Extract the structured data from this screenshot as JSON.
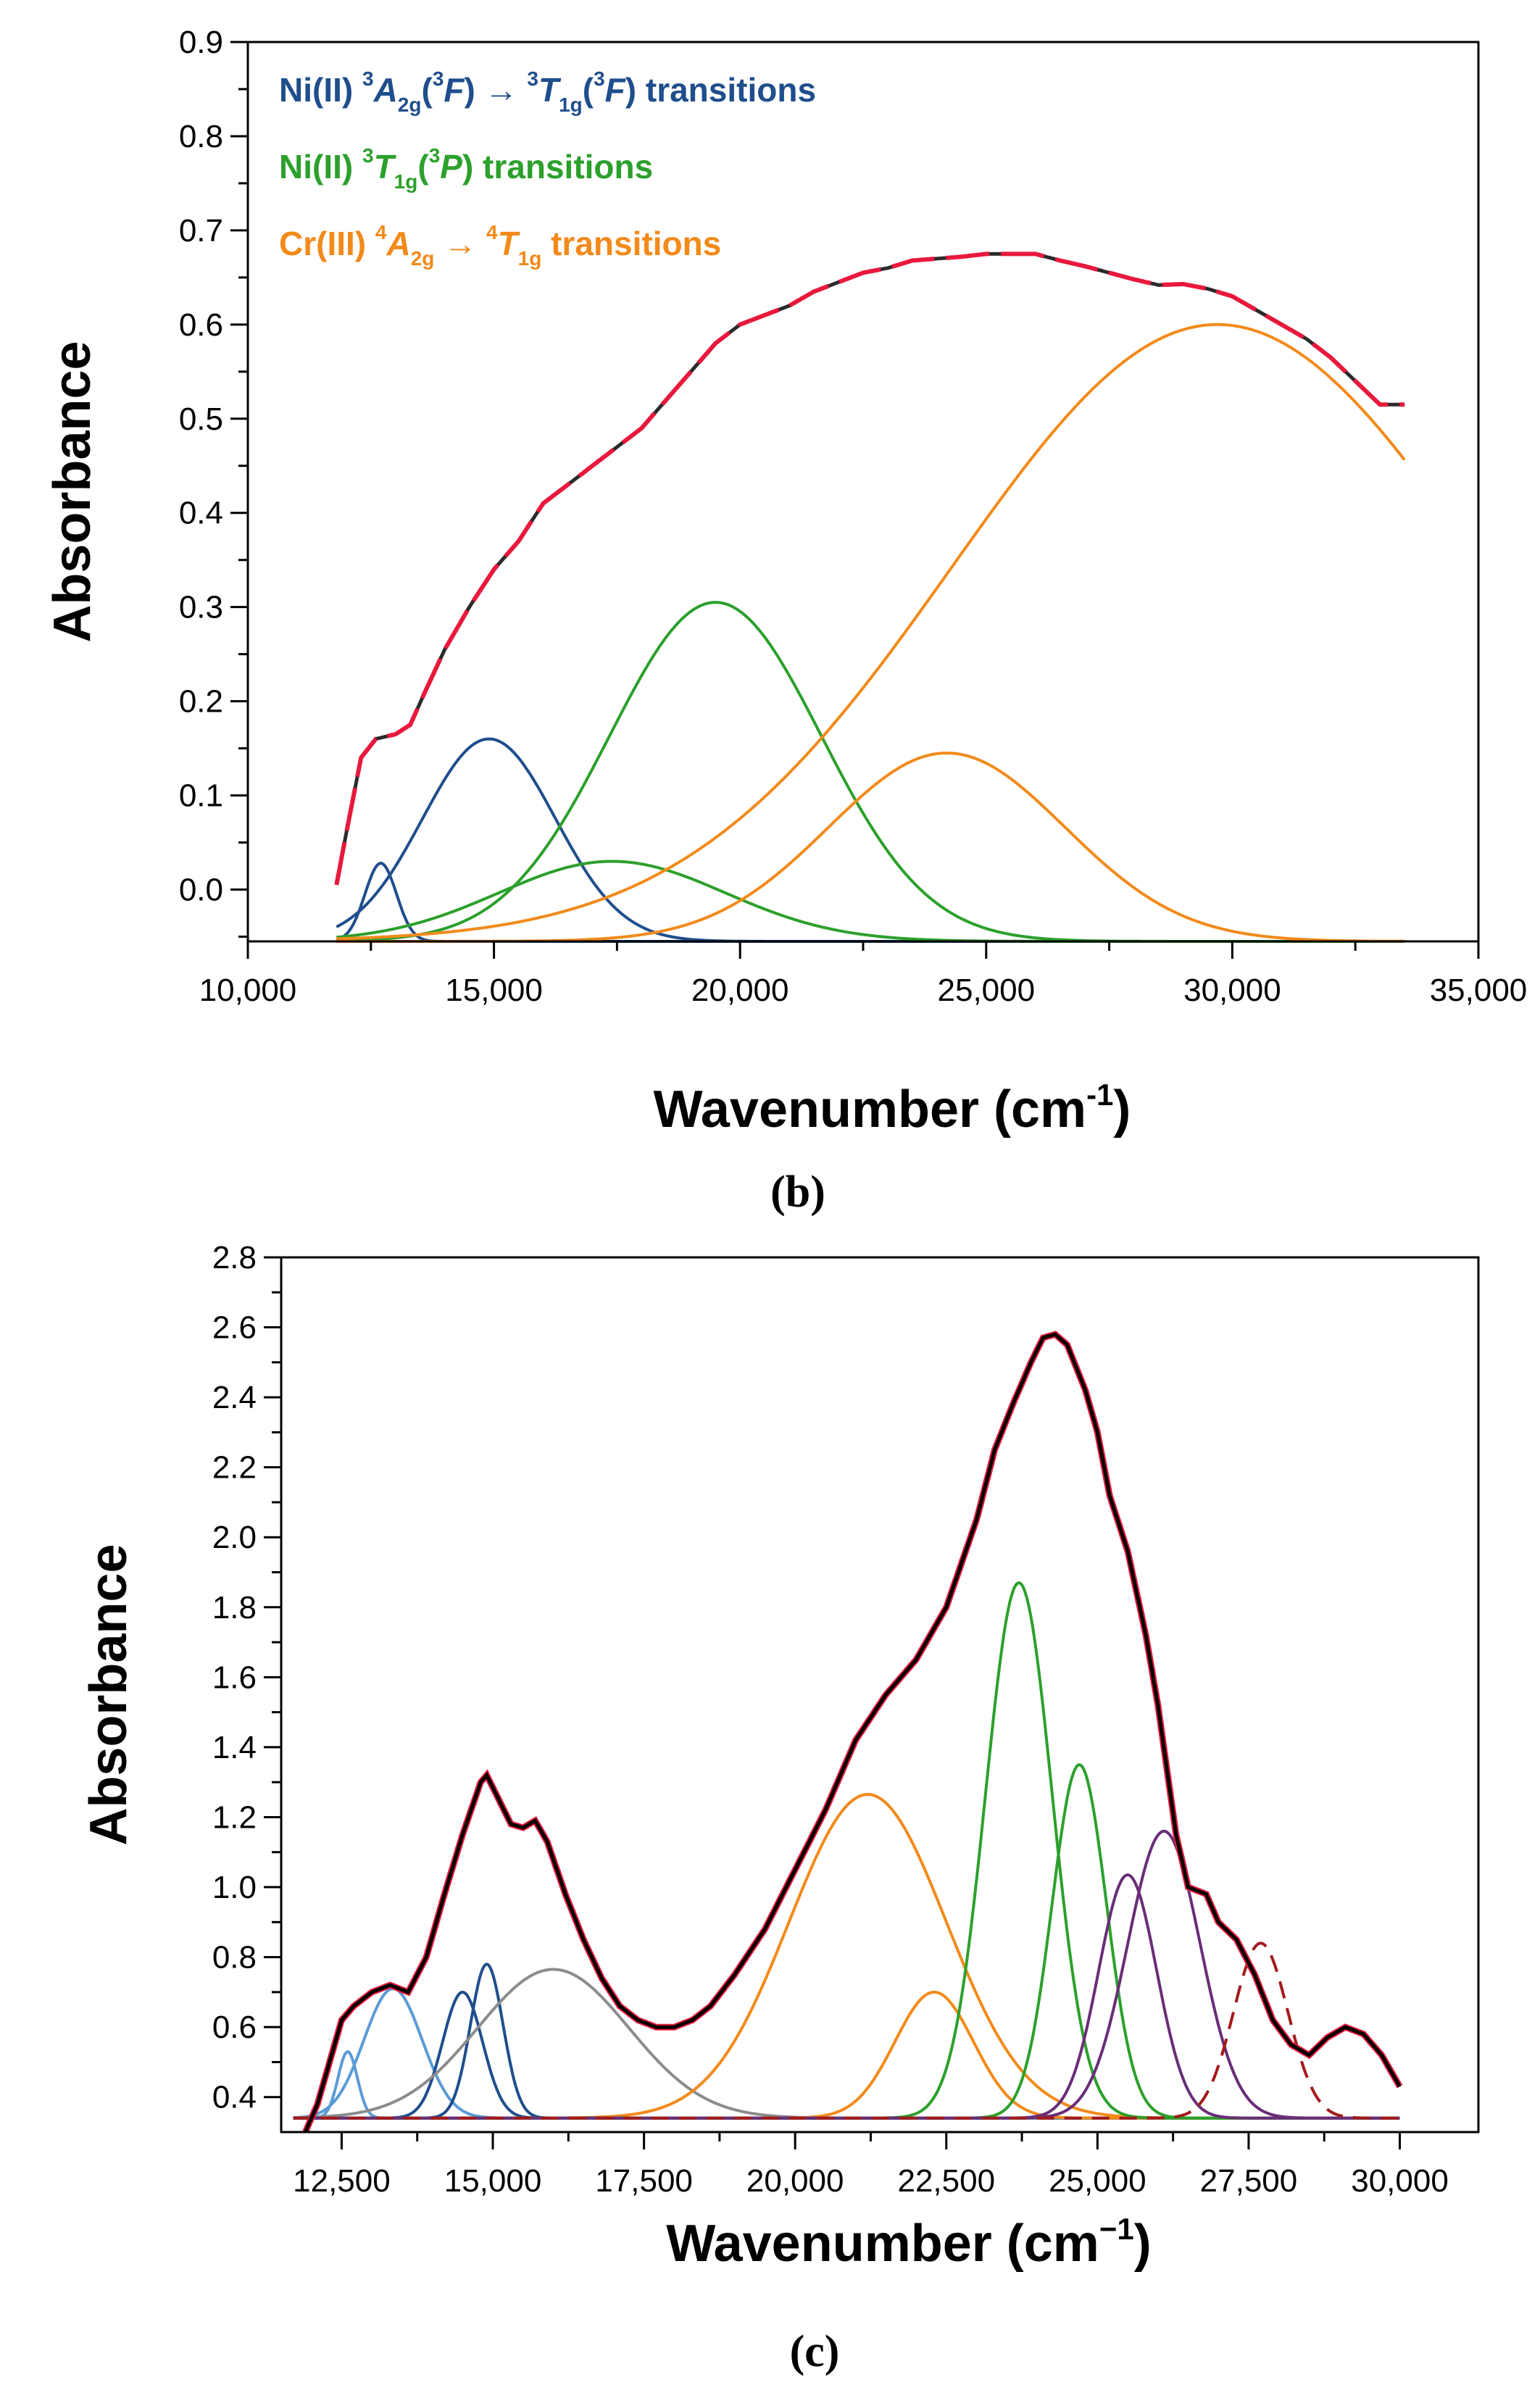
{
  "chart_data": [
    {
      "type": "line",
      "panel_label": "(b)",
      "xlabel": "Wavenumber (cm",
      "xlabel_sup": "-1",
      "xlabel_close": ")",
      "ylabel": "Absorbance",
      "xlim": [
        10000,
        35000
      ],
      "ylim": [
        -0.055,
        0.9
      ],
      "xticks": [
        10000,
        15000,
        20000,
        25000,
        30000,
        35000
      ],
      "xtick_labels": [
        "10,000",
        "15,000",
        "20,000",
        "25,000",
        "30,000",
        "35,000"
      ],
      "yticks": [
        0.0,
        0.1,
        0.2,
        0.3,
        0.4,
        0.5,
        0.6,
        0.7,
        0.8,
        0.9
      ],
      "ytick_labels": [
        "0.0",
        "0.1",
        "0.2",
        "0.3",
        "0.4",
        "0.5",
        "0.6",
        "0.7",
        "0.8",
        "0.9"
      ],
      "baseline": -0.055,
      "x_range": [
        11800,
        33500
      ],
      "legend": [
        {
          "color": "#1f4e8c",
          "parts": [
            {
              "t": "Ni(II) "
            },
            {
              "t": "3",
              "s": "sup"
            },
            {
              "t": "A",
              "i": true
            },
            {
              "t": "2g",
              "s": "sub"
            },
            {
              "t": "("
            },
            {
              "t": "3",
              "s": "sup"
            },
            {
              "t": "F",
              "i": true
            },
            {
              "t": ") → "
            },
            {
              "t": "3",
              "s": "sup"
            },
            {
              "t": "T",
              "i": true
            },
            {
              "t": "1g",
              "s": "sub"
            },
            {
              "t": "("
            },
            {
              "t": "3",
              "s": "sup"
            },
            {
              "t": "F",
              "i": true
            },
            {
              "t": ") transitions"
            }
          ]
        },
        {
          "color": "#2ca02c",
          "parts": [
            {
              "t": "Ni(II) "
            },
            {
              "t": "3",
              "s": "sup"
            },
            {
              "t": "T",
              "i": true
            },
            {
              "t": "1g",
              "s": "sub"
            },
            {
              "t": "("
            },
            {
              "t": "3",
              "s": "sup"
            },
            {
              "t": "P",
              "i": true
            },
            {
              "t": ") transitions"
            }
          ]
        },
        {
          "color": "#f28a1a",
          "parts": [
            {
              "t": "Cr(III) "
            },
            {
              "t": "4",
              "s": "sup"
            },
            {
              "t": "A",
              "i": true
            },
            {
              "t": "2g",
              "s": "sub"
            },
            {
              "t": " → "
            },
            {
              "t": "4",
              "s": "sup"
            },
            {
              "t": "T",
              "i": true
            },
            {
              "t": "1g",
              "s": "sub"
            },
            {
              "t": " transitions"
            }
          ]
        }
      ],
      "series": [
        {
          "name": "Ni(II) 3A2g(3F)->3T1g(3F) band 1",
          "color": "#1f4e8c",
          "center": 12700,
          "height": 0.083,
          "sigma": 320
        },
        {
          "name": "Ni(II) 3A2g(3F)->3T1g(3F) band 2",
          "color": "#1f4e8c",
          "center": 14900,
          "height": 0.215,
          "sigma": 1350
        },
        {
          "name": "Ni(II) 3T1g(3P) band 1",
          "color": "#2ca02c",
          "center": 17400,
          "height": 0.085,
          "sigma": 2300
        },
        {
          "name": "Ni(II) 3T1g(3P) band 2",
          "color": "#2ca02c",
          "center": 19500,
          "height": 0.36,
          "sigma": 2150
        },
        {
          "name": "Cr(III) 4A2g->4T1g band 1",
          "color": "#f28a1a",
          "center": 24200,
          "height": 0.2,
          "sigma": 2400
        },
        {
          "name": "Cr(III) 4A2g->4T1g band 2",
          "color": "#f28a1a",
          "center": 29700,
          "height": 0.655,
          "sigma": 5400
        }
      ],
      "experimental": {
        "name": "Experimental spectrum",
        "color": "#2b2b2b",
        "x": [
          11800,
          12000,
          12300,
          12600,
          13000,
          13300,
          13600,
          14000,
          14500,
          15000,
          15500,
          16000,
          16500,
          17000,
          17500,
          18000,
          18500,
          19000,
          19500,
          20000,
          20500,
          21000,
          21500,
          22000,
          22500,
          23000,
          23500,
          24000,
          24500,
          25000,
          25500,
          26000,
          26500,
          27000,
          27500,
          28000,
          28500,
          29000,
          29500,
          30000,
          30500,
          31000,
          31500,
          32000,
          32500,
          33000,
          33500
        ],
        "y": [
          0.005,
          0.06,
          0.14,
          0.16,
          0.165,
          0.175,
          0.21,
          0.255,
          0.3,
          0.34,
          0.37,
          0.41,
          0.43,
          0.45,
          0.47,
          0.49,
          0.52,
          0.55,
          0.58,
          0.6,
          0.61,
          0.62,
          0.635,
          0.645,
          0.655,
          0.66,
          0.668,
          0.67,
          0.672,
          0.675,
          0.675,
          0.675,
          0.668,
          0.662,
          0.655,
          0.648,
          0.642,
          0.643,
          0.638,
          0.63,
          0.615,
          0.6,
          0.585,
          0.565,
          0.54,
          0.515,
          0.515
        ]
      },
      "fit": {
        "name": "Cumulative fit",
        "color": "#e8193c",
        "dashed": true
      }
    },
    {
      "type": "line",
      "panel_label": "(c)",
      "xlabel": "Wavenumber (cm",
      "xlabel_sup": "−1",
      "xlabel_close": ")",
      "ylabel": "Absorbance",
      "xlim": [
        11500,
        31300
      ],
      "ylim": [
        0.3,
        2.8
      ],
      "xticks": [
        12500,
        15000,
        17500,
        20000,
        22500,
        25000,
        27500,
        30000
      ],
      "xtick_labels": [
        "12,500",
        "15,000",
        "17,500",
        "20,000",
        "22,500",
        "25,000",
        "27,500",
        "30,000"
      ],
      "yticks": [
        0.4,
        0.6,
        0.8,
        1.0,
        1.2,
        1.4,
        1.6,
        1.8,
        2.0,
        2.2,
        2.4,
        2.6,
        2.8
      ],
      "ytick_labels": [
        "0.4",
        "0.6",
        "0.8",
        "1.0",
        "1.2",
        "1.4",
        "1.6",
        "1.8",
        "2.0",
        "2.2",
        "2.4",
        "2.6",
        "2.8"
      ],
      "baseline": 0.34,
      "x_range": [
        11700,
        30000
      ],
      "series": [
        {
          "name": "Light blue band 1",
          "color": "#5b9bd5",
          "center": 12600,
          "height": 0.19,
          "sigma": 160
        },
        {
          "name": "Light blue band 2",
          "color": "#5b9bd5",
          "center": 13350,
          "height": 0.37,
          "sigma": 480
        },
        {
          "name": "Dark blue band 1",
          "color": "#1f4e8c",
          "center": 14500,
          "height": 0.36,
          "sigma": 330
        },
        {
          "name": "Dark blue band 2",
          "color": "#1f4e8c",
          "center": 14900,
          "height": 0.44,
          "sigma": 270
        },
        {
          "name": "Gray band",
          "color": "#8c8c8c",
          "center": 16000,
          "height": 0.425,
          "sigma": 1250
        },
        {
          "name": "Orange band 1",
          "color": "#f28a1a",
          "center": 21200,
          "height": 0.925,
          "sigma": 1300
        },
        {
          "name": "Orange band 2",
          "color": "#f28a1a",
          "center": 22300,
          "height": 0.36,
          "sigma": 650
        },
        {
          "name": "Green band 1",
          "color": "#2ca02c",
          "center": 23700,
          "height": 1.53,
          "sigma": 550
        },
        {
          "name": "Green band 2",
          "color": "#2ca02c",
          "center": 24700,
          "height": 1.01,
          "sigma": 450
        },
        {
          "name": "Purple band 1",
          "color": "#6a2e78",
          "center": 25500,
          "height": 0.695,
          "sigma": 480
        },
        {
          "name": "Purple band 2",
          "color": "#6a2e78",
          "center": 26100,
          "height": 0.82,
          "sigma": 600
        },
        {
          "name": "Dashed red band",
          "color": "#a31b1b",
          "center": 27700,
          "height": 0.5,
          "sigma": 450,
          "dashed": true
        }
      ],
      "experimental": {
        "name": "Experimental spectrum",
        "color": "#000000",
        "x": [
          11900,
          12100,
          12300,
          12500,
          12700,
          13000,
          13300,
          13600,
          13900,
          14200,
          14500,
          14800,
          14900,
          15100,
          15300,
          15500,
          15700,
          15900,
          16200,
          16500,
          16800,
          17100,
          17400,
          17700,
          18000,
          18300,
          18600,
          19000,
          19500,
          20000,
          20500,
          21000,
          21500,
          22000,
          22500,
          23000,
          23300,
          23600,
          23900,
          24100,
          24300,
          24500,
          24800,
          25000,
          25200,
          25500,
          25800,
          26000,
          26300,
          26500,
          26800,
          27000,
          27300,
          27600,
          27900,
          28200,
          28500,
          28800,
          29100,
          29400,
          29700,
          30000
        ],
        "y": [
          0.3,
          0.38,
          0.5,
          0.62,
          0.66,
          0.7,
          0.72,
          0.7,
          0.8,
          0.98,
          1.15,
          1.3,
          1.32,
          1.25,
          1.18,
          1.17,
          1.19,
          1.13,
          0.98,
          0.85,
          0.74,
          0.66,
          0.62,
          0.6,
          0.6,
          0.62,
          0.66,
          0.75,
          0.88,
          1.05,
          1.22,
          1.42,
          1.55,
          1.65,
          1.8,
          2.05,
          2.25,
          2.38,
          2.5,
          2.57,
          2.58,
          2.55,
          2.42,
          2.3,
          2.12,
          1.96,
          1.72,
          1.52,
          1.15,
          1.0,
          0.98,
          0.9,
          0.85,
          0.75,
          0.62,
          0.55,
          0.52,
          0.57,
          0.6,
          0.58,
          0.52,
          0.43
        ]
      },
      "fit": {
        "name": "Cumulative fit",
        "color": "#e8193c",
        "dashed": false
      }
    }
  ]
}
